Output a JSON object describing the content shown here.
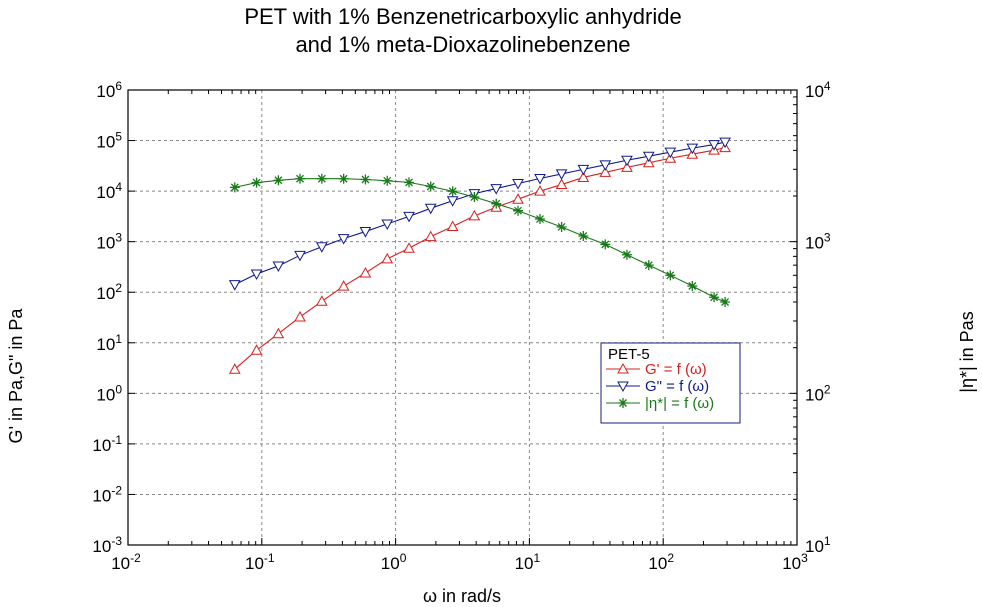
{
  "chart_data": {
    "type": "line",
    "title": [
      "PET with 1% Benzenetricarboxylic anhydride",
      "and 1% meta-Dioxazolinebenzene"
    ],
    "xlabel": "ω in rad/s",
    "ylabel_left": "G' in Pa,G\" in Pa",
    "ylabel_right": "|η*| in Pas",
    "x_scale": "log",
    "y_left_scale": "log",
    "y_right_scale": "log",
    "xlim": [
      0.01,
      1000
    ],
    "ylim_left": [
      0.001,
      1000000
    ],
    "ylim_right": [
      10,
      10000
    ],
    "grid": true,
    "x_ticks": [
      {
        "base": "10",
        "exp": "-2"
      },
      {
        "base": "10",
        "exp": "-1"
      },
      {
        "base": "10",
        "exp": "0"
      },
      {
        "base": "10",
        "exp": "1"
      },
      {
        "base": "10",
        "exp": "2"
      },
      {
        "base": "10",
        "exp": "3"
      }
    ],
    "y_left_ticks": [
      {
        "base": "10",
        "exp": "-3"
      },
      {
        "base": "10",
        "exp": "-2"
      },
      {
        "base": "10",
        "exp": "-1"
      },
      {
        "base": "10",
        "exp": "0"
      },
      {
        "base": "10",
        "exp": "1"
      },
      {
        "base": "10",
        "exp": "2"
      },
      {
        "base": "10",
        "exp": "3"
      },
      {
        "base": "10",
        "exp": "4"
      },
      {
        "base": "10",
        "exp": "5"
      },
      {
        "base": "10",
        "exp": "6"
      }
    ],
    "y_right_ticks": [
      {
        "base": "10",
        "exp": "1"
      },
      {
        "base": "10",
        "exp": "2"
      },
      {
        "base": "10",
        "exp": "3"
      },
      {
        "base": "10",
        "exp": "4"
      }
    ],
    "legend": {
      "title": "PET-5",
      "position": "center-right",
      "entries": [
        "G' = f (ω)",
        "G\" = f (ω)",
        "|η*| = f (ω)"
      ]
    },
    "series": [
      {
        "name": "G' = f (ω)",
        "axis": "left",
        "color": "#d42020",
        "marker": "triangle-up",
        "x": [
          0.0628,
          0.0914,
          0.133,
          0.193,
          0.281,
          0.409,
          0.595,
          0.866,
          1.26,
          1.83,
          2.67,
          3.88,
          5.65,
          8.22,
          12.0,
          17.4,
          25.3,
          36.9,
          53.6,
          78.0,
          113.0,
          165.0,
          240.0,
          290.0
        ],
        "values": [
          3.0,
          7.1,
          15.1,
          32.4,
          66.1,
          131.8,
          239.9,
          457.1,
          741.3,
          1259,
          1995,
          3236,
          4786,
          6918,
          10000,
          13490,
          18620,
          23440,
          29510,
          36310,
          44670,
          53700,
          64560,
          72440
        ]
      },
      {
        "name": "G\" = f (ω)",
        "axis": "left",
        "color": "#101a8c",
        "marker": "triangle-down",
        "x": [
          0.0628,
          0.0914,
          0.133,
          0.193,
          0.281,
          0.409,
          0.595,
          0.866,
          1.26,
          1.83,
          2.67,
          3.88,
          5.65,
          8.22,
          12.0,
          17.4,
          25.3,
          36.9,
          53.6,
          78.0,
          113.0,
          165.0,
          240.0,
          290.0
        ],
        "values": [
          141,
          229,
          331,
          537,
          794,
          1148,
          1585,
          2239,
          3162,
          4571,
          6457,
          8913,
          11220,
          14130,
          17780,
          21880,
          26920,
          33110,
          40740,
          49000,
          58880,
          70790,
          83180,
          93330
        ]
      },
      {
        "name": "|η*| = f (ω)",
        "axis": "right",
        "color": "#1a7a1a",
        "marker": "asterisk",
        "x": [
          0.0628,
          0.0914,
          0.133,
          0.193,
          0.281,
          0.409,
          0.595,
          0.866,
          1.26,
          1.83,
          2.67,
          3.88,
          5.65,
          8.22,
          12.0,
          17.4,
          25.3,
          36.9,
          53.6,
          78.0,
          113.0,
          165.0,
          240.0,
          290.0
        ],
        "values": [
          2280,
          2450,
          2540,
          2600,
          2600,
          2600,
          2570,
          2520,
          2460,
          2310,
          2150,
          1970,
          1780,
          1600,
          1410,
          1250,
          1090,
          960,
          820,
          700,
          600,
          510,
          430,
          400
        ]
      }
    ]
  }
}
